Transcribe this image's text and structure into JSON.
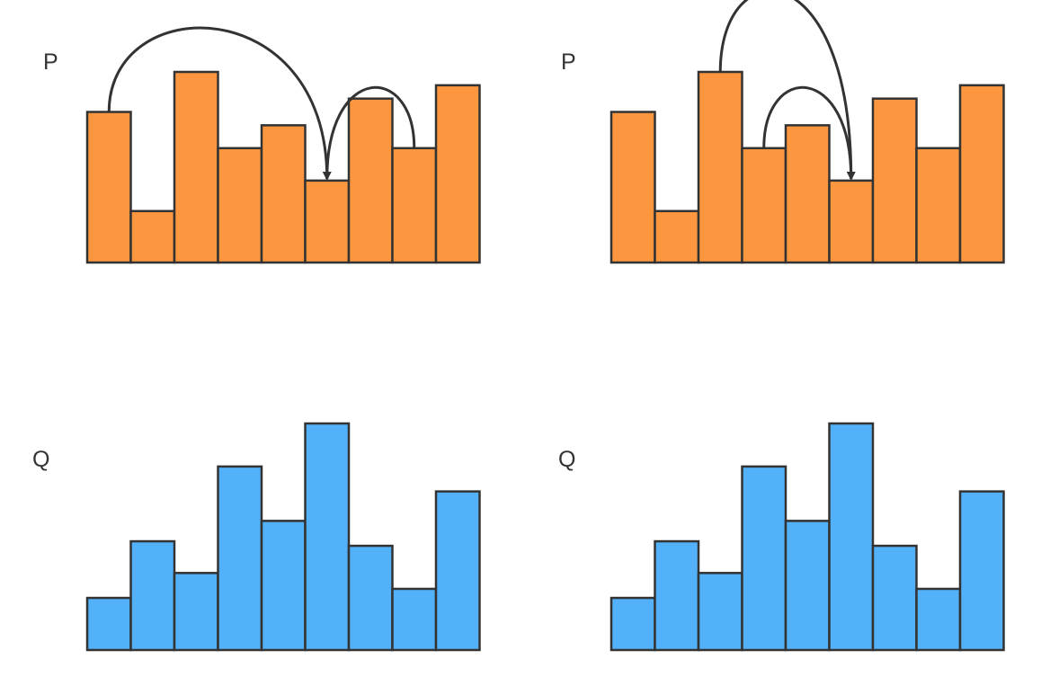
{
  "colors": {
    "p_fill": "#fd973f",
    "q_fill": "#53b1fa",
    "stroke": "#333333",
    "arrow": "#333333"
  },
  "panels": [
    {
      "id": "top-left",
      "label": "P",
      "histogram": "p",
      "arrows": [
        {
          "from_bin": 0,
          "to_bin": 5,
          "shape": "large"
        },
        {
          "from_bin": 7,
          "to_bin": 5,
          "shape": "small"
        }
      ]
    },
    {
      "id": "top-right",
      "label": "P",
      "histogram": "p",
      "arrows": [
        {
          "from_bin": 2,
          "to_bin": 5,
          "shape": "large"
        },
        {
          "from_bin": 3,
          "to_bin": 5,
          "shape": "small"
        }
      ]
    },
    {
      "id": "bottom-left",
      "label": "Q",
      "histogram": "q",
      "arrows": []
    },
    {
      "id": "bottom-right",
      "label": "Q",
      "histogram": "q",
      "arrows": []
    }
  ],
  "chart_data": {
    "type": "bar",
    "histograms": {
      "p": {
        "name": "P",
        "values": [
          0.79,
          0.27,
          1.0,
          0.6,
          0.72,
          0.43,
          0.86,
          0.6,
          0.93
        ]
      },
      "q": {
        "name": "Q",
        "values": [
          0.23,
          0.48,
          0.34,
          0.81,
          0.57,
          1.0,
          0.46,
          0.27,
          0.7
        ]
      }
    }
  }
}
